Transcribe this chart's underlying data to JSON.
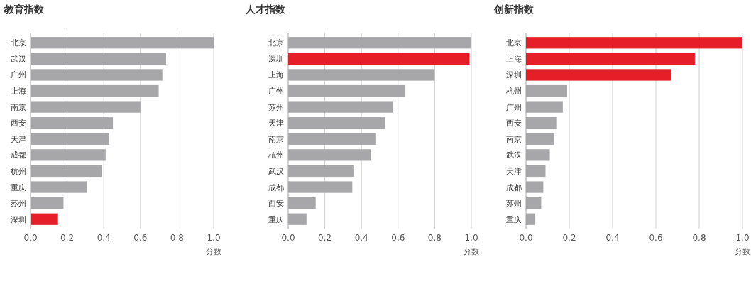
{
  "chart_data": [
    {
      "type": "bar",
      "orientation": "horizontal",
      "title": "教育指数",
      "xlabel": "分数",
      "categories": [
        "北京",
        "武汉",
        "广州",
        "上海",
        "南京",
        "西安",
        "天津",
        "成都",
        "杭州",
        "重庆",
        "苏州",
        "深圳"
      ],
      "values": [
        1.0,
        0.74,
        0.72,
        0.7,
        0.6,
        0.45,
        0.43,
        0.41,
        0.39,
        0.31,
        0.18,
        0.15
      ],
      "colors": [
        "#a7a7a9",
        "#a7a7a9",
        "#a7a7a9",
        "#a7a7a9",
        "#a7a7a9",
        "#a7a7a9",
        "#a7a7a9",
        "#a7a7a9",
        "#a7a7a9",
        "#a7a7a9",
        "#a7a7a9",
        "#e61e28"
      ],
      "xlim": [
        0,
        1
      ],
      "xticks": [
        {
          "value": 0,
          "label": "0.0"
        },
        {
          "value": 0.2,
          "label": "0.2"
        },
        {
          "value": 0.4,
          "label": "0.4"
        },
        {
          "value": 0.6,
          "label": "0.6"
        },
        {
          "value": 0.8,
          "label": "0.8"
        },
        {
          "value": 1,
          "label": "1.0"
        }
      ],
      "grid": "x"
    },
    {
      "type": "bar",
      "orientation": "horizontal",
      "title": "人才指数",
      "xlabel": "分数",
      "categories": [
        "北京",
        "深圳",
        "上海",
        "广州",
        "苏州",
        "天津",
        "南京",
        "杭州",
        "武汉",
        "成都",
        "西安",
        "重庆"
      ],
      "values": [
        1.0,
        0.99,
        0.8,
        0.64,
        0.57,
        0.53,
        0.48,
        0.45,
        0.36,
        0.35,
        0.15,
        0.1
      ],
      "colors": [
        "#a7a7a9",
        "#e61e28",
        "#a7a7a9",
        "#a7a7a9",
        "#a7a7a9",
        "#a7a7a9",
        "#a7a7a9",
        "#a7a7a9",
        "#a7a7a9",
        "#a7a7a9",
        "#a7a7a9",
        "#a7a7a9"
      ],
      "xlim": [
        0,
        1
      ],
      "xticks": [
        {
          "value": 0,
          "label": "0.0"
        },
        {
          "value": 0.2,
          "label": "0.2"
        },
        {
          "value": 0.4,
          "label": "0.4"
        },
        {
          "value": 0.6,
          "label": "0.6"
        },
        {
          "value": 0.8,
          "label": "0.8"
        },
        {
          "value": 1,
          "label": "1.0"
        }
      ],
      "grid": "x"
    },
    {
      "type": "bar",
      "orientation": "horizontal",
      "title": "创新指数",
      "xlabel": "分数",
      "categories": [
        "北京",
        "上海",
        "深圳",
        "杭州",
        "广州",
        "西安",
        "南京",
        "武汉",
        "天津",
        "成都",
        "苏州",
        "重庆"
      ],
      "values": [
        1.0,
        0.78,
        0.67,
        0.19,
        0.17,
        0.14,
        0.13,
        0.11,
        0.09,
        0.08,
        0.07,
        0.04
      ],
      "colors": [
        "#e61e28",
        "#e61e28",
        "#e61e28",
        "#a7a7a9",
        "#a7a7a9",
        "#a7a7a9",
        "#a7a7a9",
        "#a7a7a9",
        "#a7a7a9",
        "#a7a7a9",
        "#a7a7a9",
        "#a7a7a9"
      ],
      "xlim": [
        0,
        1
      ],
      "xticks": [
        {
          "value": 0,
          "label": "0.0"
        },
        {
          "value": 0.2,
          "label": "0.2"
        },
        {
          "value": 0.4,
          "label": "0.4"
        },
        {
          "value": 0.6,
          "label": "0.6"
        },
        {
          "value": 0.8,
          "label": "0.8"
        },
        {
          "value": 1,
          "label": "1.0"
        }
      ],
      "grid": "x"
    }
  ]
}
